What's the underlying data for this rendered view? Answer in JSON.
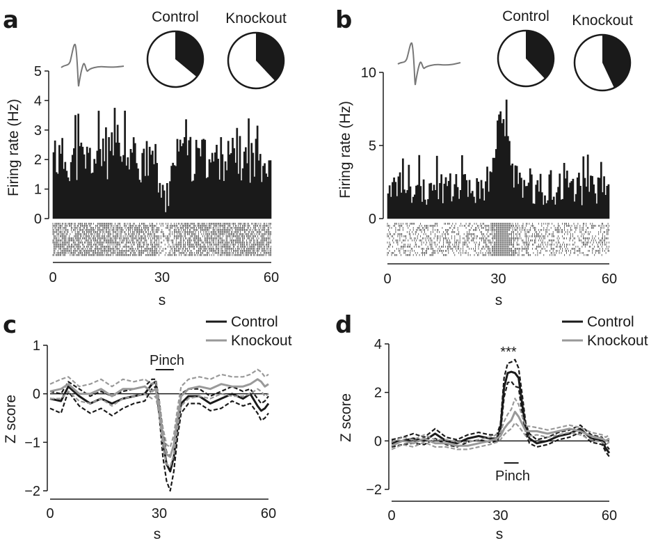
{
  "colors": {
    "control": "#1a1a1a",
    "knockout": "#999999",
    "raster": "#444444",
    "waveform": "#777777"
  },
  "chart_data": [
    {
      "panel": "a",
      "type": "bar",
      "ylabel": "Firing rate (Hz)",
      "xlabel": "s",
      "xlim": [
        0,
        60
      ],
      "ylim": [
        0,
        5
      ],
      "xticks": [
        "0",
        "30",
        "60"
      ],
      "yticks": [
        "0",
        "1",
        "2",
        "3",
        "4",
        "5"
      ],
      "rate_profile": [
        [
          0,
          2.0
        ],
        [
          28,
          2.0
        ],
        [
          29.5,
          1.1
        ],
        [
          30.5,
          0.4
        ],
        [
          32,
          1.2
        ],
        [
          34,
          2.0
        ],
        [
          60,
          2.0
        ]
      ],
      "pies": [
        {
          "label": "Control",
          "fraction": 0.36
        },
        {
          "label": "Knockout",
          "fraction": 0.38
        }
      ]
    },
    {
      "panel": "b",
      "type": "bar",
      "ylabel": "Firing rate (Hz)",
      "xlabel": "s",
      "xlim": [
        0,
        60
      ],
      "ylim": [
        0,
        10
      ],
      "xticks": [
        "0",
        "30",
        "60"
      ],
      "yticks": [
        "0",
        "5",
        "10"
      ],
      "rate_profile": [
        [
          0,
          2.0
        ],
        [
          26,
          2.0
        ],
        [
          28,
          3.0
        ],
        [
          30,
          6.5
        ],
        [
          31,
          7.5
        ],
        [
          32,
          6.5
        ],
        [
          34,
          3.0
        ],
        [
          36,
          2.0
        ],
        [
          60,
          2.0
        ]
      ],
      "pies": [
        {
          "label": "Control",
          "fraction": 0.38
        },
        {
          "label": "Knockout",
          "fraction": 0.43
        }
      ]
    },
    {
      "panel": "c",
      "type": "line",
      "ylabel": "Z score",
      "xlabel": "s",
      "xlim": [
        0,
        60
      ],
      "ylim": [
        -2,
        1
      ],
      "xticks": [
        "0",
        "30",
        "60"
      ],
      "yticks": [
        "1",
        "0",
        "−1",
        "−2"
      ],
      "annotation": "Pinch",
      "pinch": [
        29,
        34
      ],
      "legend": [
        "Control",
        "Knockout"
      ],
      "series": [
        {
          "name": "Control",
          "style": "solid",
          "x": [
            0,
            3,
            5,
            8,
            11,
            14,
            17,
            20,
            23,
            26,
            28,
            29,
            30,
            31,
            32,
            33,
            34,
            35,
            36,
            38,
            41,
            44,
            47,
            50,
            53,
            55,
            57,
            58,
            59,
            60
          ],
          "y": [
            -0.1,
            -0.15,
            0.15,
            -0.05,
            -0.2,
            -0.1,
            -0.2,
            -0.1,
            -0.05,
            0.0,
            0.2,
            0.25,
            -0.3,
            -1.0,
            -1.45,
            -1.6,
            -1.3,
            -0.7,
            -0.2,
            -0.05,
            -0.05,
            -0.2,
            -0.1,
            0.0,
            -0.1,
            0.0,
            -0.25,
            -0.35,
            -0.3,
            -0.2
          ]
        },
        {
          "name": "Control upper",
          "style": "dashed",
          "x": [
            0,
            3,
            5,
            8,
            11,
            14,
            17,
            20,
            23,
            26,
            28,
            29,
            30,
            31,
            32,
            33,
            34,
            35,
            36,
            38,
            41,
            44,
            47,
            50,
            53,
            55,
            57,
            58,
            59,
            60
          ],
          "y": [
            0.05,
            0.0,
            0.25,
            0.1,
            -0.05,
            0.05,
            -0.05,
            0.05,
            0.1,
            0.15,
            0.3,
            0.3,
            -0.15,
            -0.8,
            -1.2,
            -1.3,
            -1.05,
            -0.5,
            0.0,
            0.1,
            0.1,
            -0.05,
            0.05,
            0.15,
            0.05,
            0.1,
            -0.1,
            -0.2,
            -0.15,
            -0.05
          ]
        },
        {
          "name": "Control lower",
          "style": "dashed",
          "x": [
            0,
            3,
            5,
            8,
            11,
            14,
            17,
            20,
            23,
            26,
            28,
            29,
            30,
            31,
            32,
            33,
            34,
            35,
            36,
            38,
            41,
            44,
            47,
            50,
            53,
            55,
            57,
            58,
            59,
            60
          ],
          "y": [
            -0.3,
            -0.4,
            0.05,
            -0.25,
            -0.4,
            -0.3,
            -0.45,
            -0.3,
            -0.2,
            -0.15,
            0.1,
            0.15,
            -0.45,
            -1.3,
            -1.8,
            -2.0,
            -1.6,
            -0.9,
            -0.4,
            -0.2,
            -0.2,
            -0.35,
            -0.3,
            -0.15,
            -0.25,
            -0.2,
            -0.4,
            -0.55,
            -0.5,
            -0.4
          ]
        },
        {
          "name": "Knockout",
          "style": "solid",
          "x": [
            0,
            3,
            5,
            8,
            11,
            14,
            17,
            20,
            23,
            26,
            28,
            29,
            30,
            31,
            32,
            33,
            34,
            35,
            36,
            38,
            41,
            44,
            47,
            50,
            53,
            55,
            57,
            58,
            59,
            60
          ],
          "y": [
            0.05,
            0.1,
            0.2,
            0.0,
            0.0,
            0.1,
            -0.05,
            0.1,
            0.1,
            0.15,
            0.05,
            0.1,
            -0.3,
            -0.9,
            -1.25,
            -1.3,
            -1.05,
            -0.5,
            -0.05,
            0.1,
            0.15,
            0.1,
            0.2,
            0.15,
            0.15,
            0.2,
            0.3,
            0.25,
            0.15,
            0.2
          ]
        },
        {
          "name": "Knockout upper",
          "style": "dashed",
          "x": [
            0,
            3,
            5,
            8,
            11,
            14,
            17,
            20,
            23,
            26,
            28,
            29,
            30,
            31,
            32,
            33,
            34,
            35,
            36,
            38,
            41,
            44,
            47,
            50,
            53,
            55,
            57,
            58,
            59,
            60
          ],
          "y": [
            0.2,
            0.3,
            0.35,
            0.15,
            0.2,
            0.3,
            0.15,
            0.3,
            0.25,
            0.3,
            0.2,
            0.25,
            -0.15,
            -0.7,
            -1.05,
            -1.1,
            -0.85,
            -0.3,
            0.15,
            0.3,
            0.35,
            0.3,
            0.4,
            0.35,
            0.35,
            0.4,
            0.5,
            0.45,
            0.35,
            0.4
          ]
        },
        {
          "name": "Knockout lower",
          "style": "dashed",
          "x": [
            0,
            3,
            5,
            8,
            11,
            14,
            17,
            20,
            23,
            26,
            28,
            29,
            30,
            31,
            32,
            33,
            34,
            35,
            36,
            38,
            41,
            44,
            47,
            50,
            53,
            55,
            57,
            58,
            59,
            60
          ],
          "y": [
            -0.1,
            -0.1,
            0.05,
            -0.15,
            -0.2,
            -0.1,
            -0.25,
            -0.1,
            -0.05,
            0.0,
            -0.1,
            -0.05,
            -0.45,
            -1.1,
            -1.45,
            -1.5,
            -1.25,
            -0.7,
            -0.25,
            -0.1,
            -0.05,
            -0.1,
            0.0,
            -0.05,
            -0.05,
            0.0,
            0.1,
            0.05,
            -0.05,
            0.0
          ]
        }
      ]
    },
    {
      "panel": "d",
      "type": "line",
      "ylabel": "Z score",
      "xlabel": "s",
      "xlim": [
        0,
        60
      ],
      "ylim": [
        -2,
        4
      ],
      "xticks": [
        "0",
        "30",
        "60"
      ],
      "yticks": [
        "4",
        "2",
        "0",
        "−2"
      ],
      "annotation": "Pinch",
      "significance": "***",
      "pinch": [
        31,
        35
      ],
      "legend": [
        "Control",
        "Knockout"
      ],
      "series": [
        {
          "name": "Control",
          "style": "solid",
          "x": [
            0,
            3,
            6,
            9,
            12,
            15,
            18,
            21,
            24,
            27,
            29,
            30,
            31,
            32,
            33,
            34,
            35,
            36,
            37,
            38,
            40,
            43,
            46,
            49,
            52,
            55,
            58,
            59,
            60
          ],
          "y": [
            -0.1,
            0.0,
            0.1,
            0.0,
            0.3,
            0.0,
            -0.1,
            0.1,
            0.2,
            0.1,
            0.1,
            0.5,
            2.2,
            2.8,
            2.85,
            2.8,
            2.6,
            1.5,
            0.5,
            0.1,
            -0.1,
            0.0,
            0.2,
            0.3,
            0.5,
            0.1,
            0.0,
            -0.3,
            -0.5
          ]
        },
        {
          "name": "Control upper",
          "style": "dashed",
          "x": [
            0,
            3,
            6,
            9,
            12,
            15,
            18,
            21,
            24,
            27,
            29,
            30,
            31,
            32,
            33,
            34,
            35,
            36,
            37,
            38,
            40,
            43,
            46,
            49,
            52,
            55,
            58,
            59,
            60
          ],
          "y": [
            0.05,
            0.15,
            0.3,
            0.15,
            0.5,
            0.15,
            0.05,
            0.25,
            0.35,
            0.25,
            0.25,
            0.7,
            2.6,
            3.2,
            3.25,
            3.35,
            3.0,
            1.9,
            0.7,
            0.3,
            0.05,
            0.15,
            0.35,
            0.45,
            0.65,
            0.25,
            0.15,
            -0.15,
            -0.35
          ]
        },
        {
          "name": "Control lower",
          "style": "dashed",
          "x": [
            0,
            3,
            6,
            9,
            12,
            15,
            18,
            21,
            24,
            27,
            29,
            30,
            31,
            32,
            33,
            34,
            35,
            36,
            37,
            38,
            40,
            43,
            46,
            49,
            52,
            55,
            58,
            59,
            60
          ],
          "y": [
            -0.25,
            -0.15,
            -0.1,
            -0.15,
            0.1,
            -0.15,
            -0.25,
            -0.05,
            0.05,
            -0.05,
            -0.05,
            0.3,
            1.8,
            2.4,
            2.45,
            2.25,
            2.2,
            1.1,
            0.3,
            -0.1,
            -0.25,
            -0.15,
            0.05,
            0.15,
            0.35,
            -0.05,
            -0.15,
            -0.45,
            -0.65
          ]
        },
        {
          "name": "Knockout",
          "style": "solid",
          "x": [
            0,
            3,
            6,
            9,
            12,
            15,
            18,
            21,
            24,
            27,
            29,
            30,
            31,
            32,
            33,
            34,
            35,
            36,
            37,
            38,
            40,
            43,
            46,
            49,
            52,
            55,
            58,
            59,
            60
          ],
          "y": [
            -0.2,
            0.0,
            -0.1,
            0.1,
            -0.1,
            -0.1,
            -0.2,
            -0.2,
            -0.1,
            0.0,
            0.1,
            0.2,
            0.5,
            0.7,
            0.85,
            1.2,
            1.0,
            0.7,
            0.4,
            0.4,
            0.4,
            0.3,
            0.4,
            0.5,
            0.4,
            0.2,
            0.1,
            0.0,
            0.1
          ]
        },
        {
          "name": "Knockout upper",
          "style": "dashed",
          "x": [
            0,
            3,
            6,
            9,
            12,
            15,
            18,
            21,
            24,
            27,
            29,
            30,
            31,
            32,
            33,
            34,
            35,
            36,
            37,
            38,
            40,
            43,
            46,
            49,
            52,
            55,
            58,
            59,
            60
          ],
          "y": [
            -0.05,
            0.15,
            0.05,
            0.25,
            0.05,
            0.05,
            -0.05,
            -0.05,
            0.05,
            0.15,
            0.25,
            0.35,
            0.8,
            1.1,
            1.3,
            1.75,
            1.5,
            1.0,
            0.6,
            0.6,
            0.55,
            0.45,
            0.55,
            0.65,
            0.55,
            0.35,
            0.25,
            0.15,
            0.25
          ]
        },
        {
          "name": "Knockout lower",
          "style": "dashed",
          "x": [
            0,
            3,
            6,
            9,
            12,
            15,
            18,
            21,
            24,
            27,
            29,
            30,
            31,
            32,
            33,
            34,
            35,
            36,
            37,
            38,
            40,
            43,
            46,
            49,
            52,
            55,
            58,
            59,
            60
          ],
          "y": [
            -0.35,
            -0.15,
            -0.25,
            -0.05,
            -0.25,
            -0.25,
            -0.35,
            -0.35,
            -0.25,
            -0.15,
            -0.05,
            0.05,
            0.25,
            0.4,
            0.5,
            0.75,
            0.6,
            0.4,
            0.2,
            0.2,
            0.25,
            0.15,
            0.25,
            0.35,
            0.25,
            0.05,
            -0.05,
            -0.15,
            -0.05
          ]
        }
      ]
    }
  ]
}
